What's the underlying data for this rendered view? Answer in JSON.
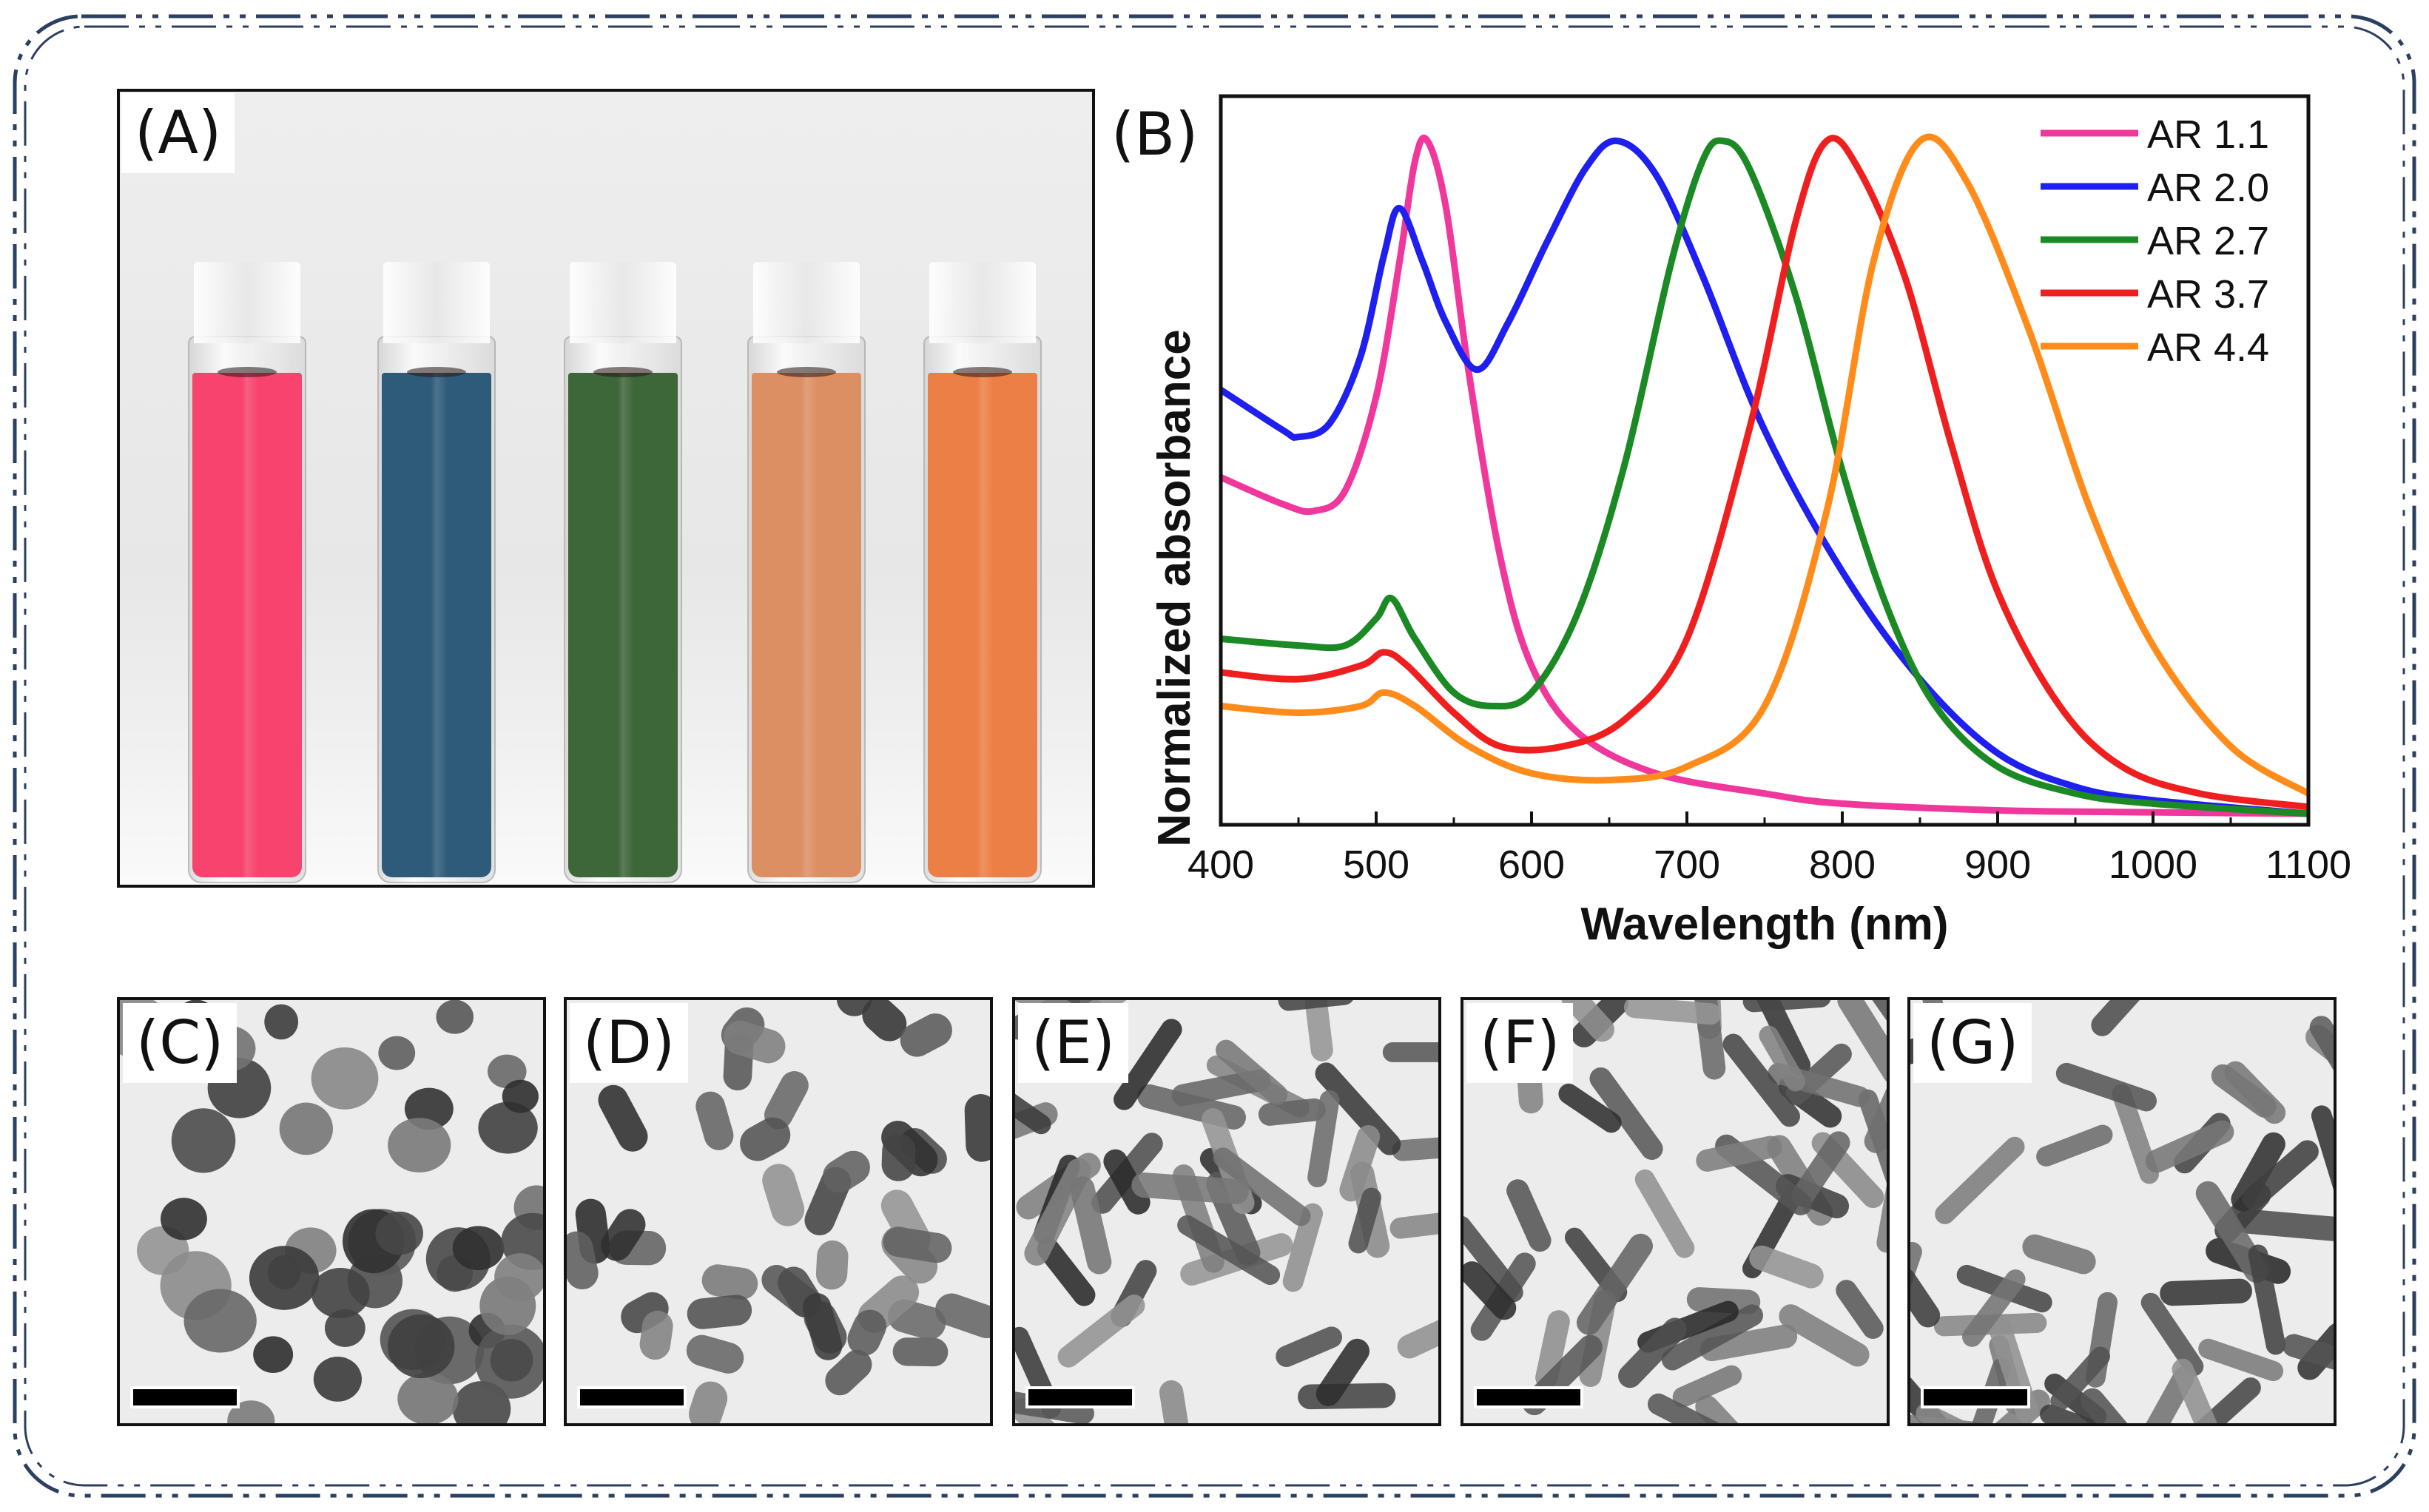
{
  "panels": {
    "a": "(A)",
    "b": "(B)",
    "c": "(C)",
    "d": "(D)",
    "e": "(E)",
    "f": "(F)",
    "g": "(G)"
  },
  "vials": [
    {
      "color": "#f7436d"
    },
    {
      "color": "#2e5b7a"
    },
    {
      "color": "#3d6639"
    },
    {
      "color": "#dc8f63"
    },
    {
      "color": "#ec7f45"
    }
  ],
  "chart_data": {
    "type": "line",
    "xlabel": "Wavelength (nm)",
    "ylabel": "Normalized absorbance",
    "xlim": [
      400,
      1100
    ],
    "ylim": [
      0,
      1.05
    ],
    "xticks": [
      400,
      500,
      600,
      700,
      800,
      900,
      1000,
      1100
    ],
    "yticks_shown": false,
    "legend_position": "top-right",
    "series": [
      {
        "name": "AR 1.1",
        "color": "#f0379c",
        "points": [
          [
            400,
            0.5
          ],
          [
            440,
            0.46
          ],
          [
            460,
            0.45
          ],
          [
            480,
            0.48
          ],
          [
            500,
            0.62
          ],
          [
            515,
            0.82
          ],
          [
            525,
            0.97
          ],
          [
            533,
            1.0
          ],
          [
            545,
            0.9
          ],
          [
            560,
            0.65
          ],
          [
            580,
            0.38
          ],
          [
            600,
            0.22
          ],
          [
            630,
            0.12
          ],
          [
            680,
            0.06
          ],
          [
            750,
            0.03
          ],
          [
            800,
            0.015
          ],
          [
            900,
            0.005
          ],
          [
            1000,
            0.002
          ],
          [
            1100,
            0.0
          ]
        ]
      },
      {
        "name": "AR 2.0",
        "color": "#1f1ff0",
        "points": [
          [
            400,
            0.63
          ],
          [
            440,
            0.57
          ],
          [
            450,
            0.56
          ],
          [
            470,
            0.58
          ],
          [
            490,
            0.68
          ],
          [
            505,
            0.83
          ],
          [
            515,
            0.9
          ],
          [
            530,
            0.82
          ],
          [
            545,
            0.73
          ],
          [
            565,
            0.66
          ],
          [
            585,
            0.73
          ],
          [
            610,
            0.85
          ],
          [
            635,
            0.96
          ],
          [
            655,
            1.0
          ],
          [
            680,
            0.95
          ],
          [
            710,
            0.8
          ],
          [
            750,
            0.57
          ],
          [
            800,
            0.36
          ],
          [
            850,
            0.2
          ],
          [
            900,
            0.09
          ],
          [
            950,
            0.04
          ],
          [
            1000,
            0.02
          ],
          [
            1100,
            0.0
          ]
        ]
      },
      {
        "name": "AR 2.7",
        "color": "#1b8a25",
        "points": [
          [
            400,
            0.26
          ],
          [
            450,
            0.25
          ],
          [
            480,
            0.25
          ],
          [
            500,
            0.29
          ],
          [
            510,
            0.32
          ],
          [
            525,
            0.26
          ],
          [
            550,
            0.18
          ],
          [
            575,
            0.16
          ],
          [
            600,
            0.18
          ],
          [
            630,
            0.3
          ],
          [
            660,
            0.52
          ],
          [
            690,
            0.82
          ],
          [
            710,
            0.97
          ],
          [
            723,
            1.0
          ],
          [
            740,
            0.96
          ],
          [
            770,
            0.77
          ],
          [
            800,
            0.51
          ],
          [
            830,
            0.3
          ],
          [
            860,
            0.16
          ],
          [
            900,
            0.07
          ],
          [
            950,
            0.03
          ],
          [
            1000,
            0.015
          ],
          [
            1100,
            0.0
          ]
        ]
      },
      {
        "name": "AR 3.7",
        "color": "#f01f1f",
        "points": [
          [
            400,
            0.21
          ],
          [
            450,
            0.2
          ],
          [
            490,
            0.22
          ],
          [
            505,
            0.24
          ],
          [
            520,
            0.22
          ],
          [
            550,
            0.15
          ],
          [
            580,
            0.1
          ],
          [
            620,
            0.1
          ],
          [
            660,
            0.14
          ],
          [
            700,
            0.26
          ],
          [
            740,
            0.57
          ],
          [
            770,
            0.88
          ],
          [
            790,
            1.0
          ],
          [
            810,
            0.96
          ],
          [
            840,
            0.8
          ],
          [
            870,
            0.55
          ],
          [
            900,
            0.33
          ],
          [
            940,
            0.16
          ],
          [
            980,
            0.07
          ],
          [
            1030,
            0.03
          ],
          [
            1100,
            0.01
          ]
        ]
      },
      {
        "name": "AR 4.4",
        "color": "#ff8c1a",
        "points": [
          [
            400,
            0.16
          ],
          [
            450,
            0.15
          ],
          [
            490,
            0.16
          ],
          [
            505,
            0.18
          ],
          [
            525,
            0.16
          ],
          [
            560,
            0.1
          ],
          [
            600,
            0.06
          ],
          [
            650,
            0.05
          ],
          [
            700,
            0.07
          ],
          [
            750,
            0.16
          ],
          [
            790,
            0.45
          ],
          [
            820,
            0.82
          ],
          [
            850,
            1.0
          ],
          [
            880,
            0.94
          ],
          [
            920,
            0.72
          ],
          [
            960,
            0.45
          ],
          [
            1000,
            0.25
          ],
          [
            1050,
            0.1
          ],
          [
            1100,
            0.03
          ]
        ]
      }
    ]
  },
  "tem_panels": [
    {
      "id": "c",
      "shapes": "spheres"
    },
    {
      "id": "d",
      "shapes": "short-rods"
    },
    {
      "id": "e",
      "shapes": "rods"
    },
    {
      "id": "f",
      "shapes": "rods"
    },
    {
      "id": "g",
      "shapes": "rods"
    }
  ]
}
